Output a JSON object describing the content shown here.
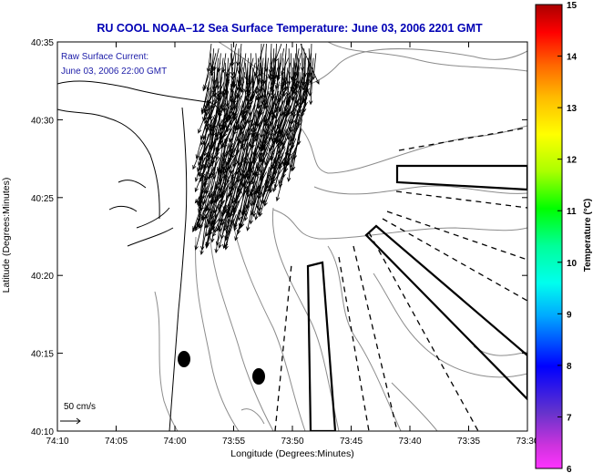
{
  "title": "RU COOL  NOAA–12  Sea Surface Temperature:  June 03, 2006 2201 GMT",
  "annotation": {
    "line1": "Raw Surface Current:",
    "line2": "June 03, 2006 22:00 GMT"
  },
  "scale_label": "50 cm/s",
  "axes": {
    "xlabel": "Longitude (Degrees:Minutes)",
    "ylabel": "Latitude (Degrees:Minutes)",
    "xticks": [
      "74:10",
      "74:05",
      "74:00",
      "73:55",
      "73:50",
      "73:45",
      "73:40",
      "73:35",
      "73:30"
    ],
    "yticks": [
      "40:35",
      "40:30",
      "40:25",
      "40:20",
      "40:15",
      "40:10"
    ]
  },
  "colorbar": {
    "label": "Temperature (°C)",
    "ticks": [
      "15",
      "14",
      "13",
      "12",
      "11",
      "10",
      "9",
      "8",
      "7",
      "6"
    ]
  },
  "colors": {
    "title": "#0000b4",
    "annotation": "#1c1ca8",
    "coastline": "#000000",
    "isobath": "#8c8c8c",
    "vectors": "#000000"
  }
}
